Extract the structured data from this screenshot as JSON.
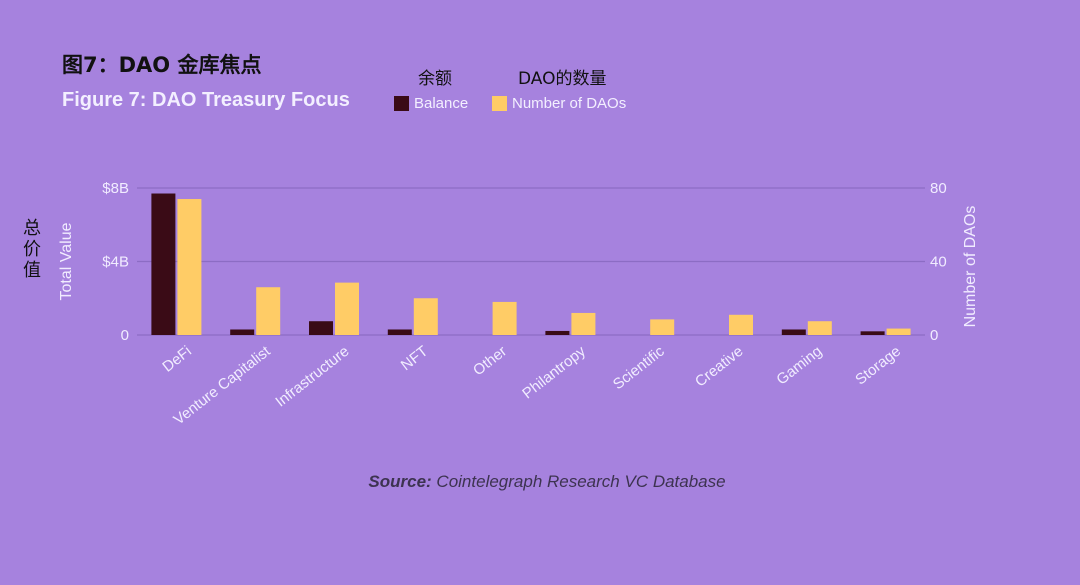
{
  "header": {
    "cn_title": "图7：DAO 金库焦点",
    "en_title": "Figure 7: DAO Treasury Focus",
    "cn_legend_balance": "余额",
    "cn_legend_count": "DAO的数量",
    "cn_ylabel": "总价值"
  },
  "legend": {
    "balance": "Balance",
    "count": "Number of DAOs"
  },
  "colors": {
    "background": "#a682de",
    "balance": "#3a0b16",
    "count": "#ffcc66",
    "axis_text": "#f1ecff",
    "grid": "#8c6cc4"
  },
  "source": {
    "prefix": "Source:",
    "text": " Cointelegraph Research VC Database"
  },
  "chart_data": {
    "type": "bar",
    "title": "Figure 7: DAO Treasury Focus",
    "categories": [
      "DeFi",
      "Venture Capitalist",
      "Infrastructure",
      "NFT",
      "Other",
      "Philantropy",
      "Scientific",
      "Creative",
      "Gaming",
      "Storage"
    ],
    "series": [
      {
        "name": "Balance",
        "axis": "left",
        "unit": "$B",
        "values": [
          7.7,
          0.3,
          0.75,
          0.3,
          0,
          0.22,
          0,
          0,
          0.3,
          0.2
        ]
      },
      {
        "name": "Number of DAOs",
        "axis": "right",
        "values": [
          74,
          26,
          28.5,
          20,
          18,
          12,
          8.5,
          11,
          7.5,
          3.5
        ]
      }
    ],
    "ylabel": "Total Value",
    "y2label": "Number of DAOs",
    "ylim": [
      0,
      8
    ],
    "y2lim": [
      0,
      80
    ],
    "yticks": [
      "0",
      "$4B",
      "$8B"
    ],
    "y2ticks": [
      "0",
      "40",
      "80"
    ],
    "grid": true,
    "legend_position": "top"
  }
}
